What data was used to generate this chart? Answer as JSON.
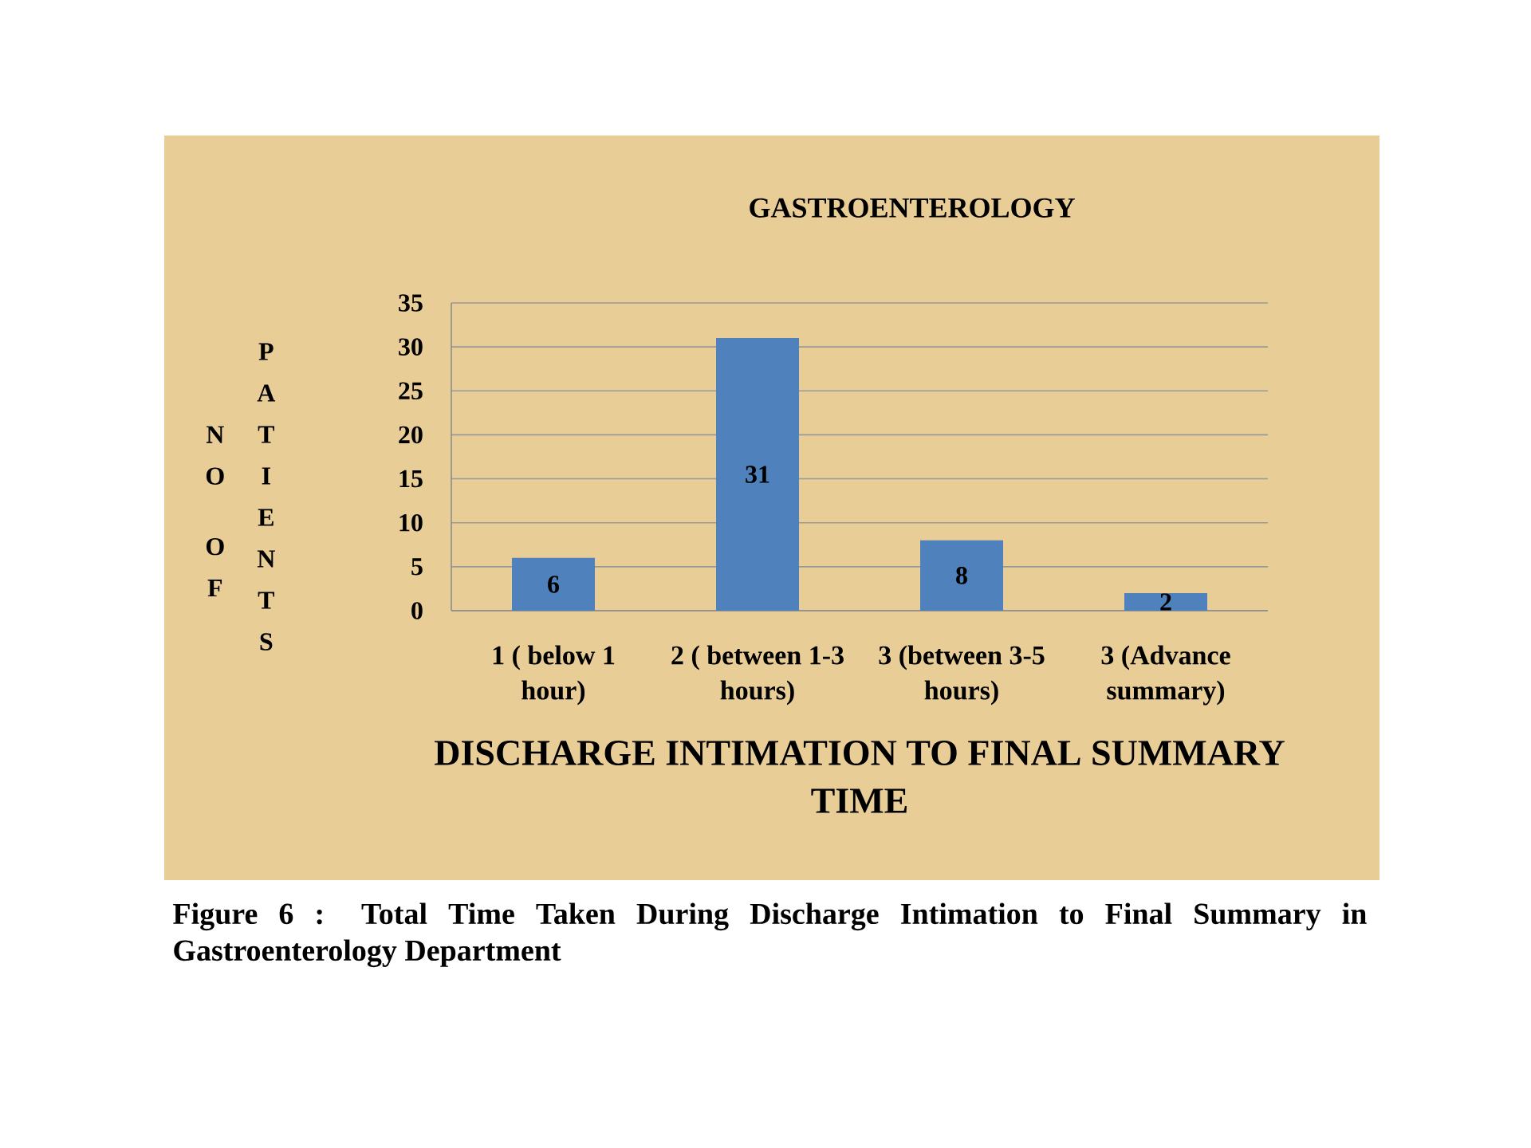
{
  "chart_data": {
    "type": "bar",
    "title": "GASTROENTEROLOGY",
    "xlabel": "DISCHARGE INTIMATION TO FINAL SUMMARY TIME",
    "ylabel": "NO OF PATIENTS",
    "categories": [
      "1 ( below 1 hour)",
      "2 ( between 1-3 hours)",
      "3 (between 3-5 hours)",
      "3 (Advance summary)"
    ],
    "values": [
      6,
      31,
      8,
      2
    ],
    "color": "#4f81bd",
    "ylim": [
      0,
      35
    ],
    "yticks": [
      0,
      5,
      10,
      15,
      20,
      25,
      30,
      35
    ],
    "grid": "y",
    "data_labels": true,
    "annotations": [
      "Figure 6 : Total Time Taken During Discharge Intimation to Final Summary in Gastroenterology Department"
    ]
  }
}
